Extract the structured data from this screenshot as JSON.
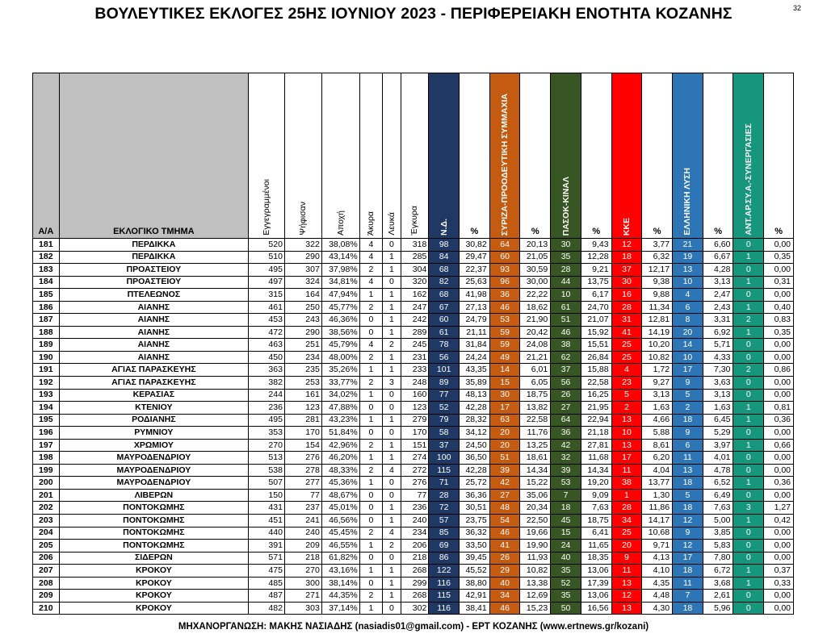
{
  "page": {
    "title": "ΒΟΥΛΕΥΤΙΚΕΣ ΕΚΛΟΓΕΣ 25ΗΣ ΙΟΥΝΙΟΥ 2023 - ΠΕΡΙΦΕΡΕΙΑΚΗ ΕΝΟΤΗΤΑ ΚΟΖΑΝΗΣ",
    "page_number": "32",
    "footer": "ΜΗΧΑΝΟΡΓΑΝΩΣΗ: ΜΑΚΗΣ ΝΑΣΙΑΔΗΣ (nasiadis01@gmail.com) - ΕΡΤ ΚΟΖΑΝΗΣ (www.ertnews.gr/kozani)"
  },
  "headers": {
    "aa": "Α/Α",
    "tmima": "ΕΚΛΟΓΙΚΟ ΤΜΗΜΑ",
    "eggegrammenoi": "Εγγεγραμμένοι",
    "psifisan": "Ψήφισαν",
    "apoxi": "Αποχή",
    "akyra": "Άκυρα",
    "lefka": "Λευκά",
    "egkyra": "Έγκυρα",
    "pct": "%"
  },
  "parties": [
    {
      "key": "nd",
      "name": "Ν.Δ.",
      "color": "#1f3864"
    },
    {
      "key": "sy",
      "name": "ΣΥΡΙΖΑ-ΠΡΟΟΔΕΥΤΙΚΗ ΣΥΜΜΑΧΙΑ",
      "color": "#c55a11"
    },
    {
      "key": "pa",
      "name": "ΠΑΣΟΚ-ΚΙΝΑΛ",
      "color": "#375623"
    },
    {
      "key": "kk",
      "name": "ΚΚΕ",
      "color": "#ff0000"
    },
    {
      "key": "el",
      "name": "ΕΛΛΗΝΙΚΗ ΛΥΣΗ",
      "color": "#2e75b6"
    },
    {
      "key": "an",
      "name": "ΑΝΤ.ΑΡ.ΣΥ.Α.-ΣΥΝΕΡΓΑΣΙΕΣ",
      "color": "#15967d"
    }
  ],
  "rows": [
    [
      "181",
      "ΠΕΡΔΙΚΚΑ",
      "520",
      "322",
      "38,08%",
      "4",
      "0",
      "318",
      "98",
      "30,82",
      "64",
      "20,13",
      "30",
      "9,43",
      "12",
      "3,77",
      "21",
      "6,60",
      "0",
      "0,00"
    ],
    [
      "182",
      "ΠΕΡΔΙΚΚΑ",
      "510",
      "290",
      "43,14%",
      "4",
      "1",
      "285",
      "84",
      "29,47",
      "60",
      "21,05",
      "35",
      "12,28",
      "18",
      "6,32",
      "19",
      "6,67",
      "1",
      "0,35"
    ],
    [
      "183",
      "ΠΡΟΑΣΤΕΙΟΥ",
      "495",
      "307",
      "37,98%",
      "2",
      "1",
      "304",
      "68",
      "22,37",
      "93",
      "30,59",
      "28",
      "9,21",
      "37",
      "12,17",
      "13",
      "4,28",
      "0",
      "0,00"
    ],
    [
      "184",
      "ΠΡΟΑΣΤΕΙΟΥ",
      "497",
      "324",
      "34,81%",
      "4",
      "0",
      "320",
      "82",
      "25,63",
      "96",
      "30,00",
      "44",
      "13,75",
      "30",
      "9,38",
      "10",
      "3,13",
      "1",
      "0,31"
    ],
    [
      "185",
      "ΠΤΕΛΕΩΝΟΣ",
      "315",
      "164",
      "47,94%",
      "1",
      "1",
      "162",
      "68",
      "41,98",
      "36",
      "22,22",
      "10",
      "6,17",
      "16",
      "9,88",
      "4",
      "2,47",
      "0",
      "0,00"
    ],
    [
      "186",
      "ΑΙΑΝΗΣ",
      "461",
      "250",
      "45,77%",
      "2",
      "1",
      "247",
      "67",
      "27,13",
      "46",
      "18,62",
      "61",
      "24,70",
      "28",
      "11,34",
      "6",
      "2,43",
      "1",
      "0,40"
    ],
    [
      "187",
      "ΑΙΑΝΗΣ",
      "453",
      "243",
      "46,36%",
      "0",
      "1",
      "242",
      "60",
      "24,79",
      "53",
      "21,90",
      "51",
      "21,07",
      "31",
      "12,81",
      "8",
      "3,31",
      "2",
      "0,83"
    ],
    [
      "188",
      "ΑΙΑΝΗΣ",
      "472",
      "290",
      "38,56%",
      "0",
      "1",
      "289",
      "61",
      "21,11",
      "59",
      "20,42",
      "46",
      "15,92",
      "41",
      "14,19",
      "20",
      "6,92",
      "1",
      "0,35"
    ],
    [
      "189",
      "ΑΙΑΝΗΣ",
      "463",
      "251",
      "45,79%",
      "4",
      "2",
      "245",
      "78",
      "31,84",
      "59",
      "24,08",
      "38",
      "15,51",
      "25",
      "10,20",
      "14",
      "5,71",
      "0",
      "0,00"
    ],
    [
      "190",
      "ΑΙΑΝΗΣ",
      "450",
      "234",
      "48,00%",
      "2",
      "1",
      "231",
      "56",
      "24,24",
      "49",
      "21,21",
      "62",
      "26,84",
      "25",
      "10,82",
      "10",
      "4,33",
      "0",
      "0,00"
    ],
    [
      "191",
      "ΑΓΙΑΣ ΠΑΡΑΣΚΕΥΗΣ",
      "363",
      "235",
      "35,26%",
      "1",
      "1",
      "233",
      "101",
      "43,35",
      "14",
      "6,01",
      "37",
      "15,88",
      "4",
      "1,72",
      "17",
      "7,30",
      "2",
      "0,86"
    ],
    [
      "192",
      "ΑΓΙΑΣ ΠΑΡΑΣΚΕΥΗΣ",
      "382",
      "253",
      "33,77%",
      "2",
      "3",
      "248",
      "89",
      "35,89",
      "15",
      "6,05",
      "56",
      "22,58",
      "23",
      "9,27",
      "9",
      "3,63",
      "0",
      "0,00"
    ],
    [
      "193",
      "ΚΕΡΑΣΙΑΣ",
      "244",
      "161",
      "34,02%",
      "1",
      "0",
      "160",
      "77",
      "48,13",
      "30",
      "18,75",
      "26",
      "16,25",
      "5",
      "3,13",
      "5",
      "3,13",
      "0",
      "0,00"
    ],
    [
      "194",
      "ΚΤΕΝΙΟΥ",
      "236",
      "123",
      "47,88%",
      "0",
      "0",
      "123",
      "52",
      "42,28",
      "17",
      "13,82",
      "27",
      "21,95",
      "2",
      "1,63",
      "2",
      "1,63",
      "1",
      "0,81"
    ],
    [
      "195",
      "ΡΟΔΙΑΝΗΣ",
      "495",
      "281",
      "43,23%",
      "1",
      "1",
      "279",
      "79",
      "28,32",
      "63",
      "22,58",
      "64",
      "22,94",
      "13",
      "4,66",
      "18",
      "6,45",
      "1",
      "0,36"
    ],
    [
      "196",
      "ΡΥΜΝΙΟΥ",
      "353",
      "170",
      "51,84%",
      "0",
      "0",
      "170",
      "58",
      "34,12",
      "20",
      "11,76",
      "36",
      "21,18",
      "10",
      "5,88",
      "9",
      "5,29",
      "0",
      "0,00"
    ],
    [
      "197",
      "ΧΡΩΜΙΟΥ",
      "270",
      "154",
      "42,96%",
      "2",
      "1",
      "151",
      "37",
      "24,50",
      "20",
      "13,25",
      "42",
      "27,81",
      "13",
      "8,61",
      "6",
      "3,97",
      "1",
      "0,66"
    ],
    [
      "198",
      "ΜΑΥΡΟΔΕΝΔΡΙΟΥ",
      "513",
      "276",
      "46,20%",
      "1",
      "1",
      "274",
      "100",
      "36,50",
      "51",
      "18,61",
      "32",
      "11,68",
      "17",
      "6,20",
      "11",
      "4,01",
      "0",
      "0,00"
    ],
    [
      "199",
      "ΜΑΥΡΟΔΕΝΔΡΙΟΥ",
      "538",
      "278",
      "48,33%",
      "2",
      "4",
      "272",
      "115",
      "42,28",
      "39",
      "14,34",
      "39",
      "14,34",
      "11",
      "4,04",
      "13",
      "4,78",
      "0",
      "0,00"
    ],
    [
      "200",
      "ΜΑΥΡΟΔΕΝΔΡΙΟΥ",
      "507",
      "277",
      "45,36%",
      "1",
      "0",
      "276",
      "71",
      "25,72",
      "42",
      "15,22",
      "53",
      "19,20",
      "38",
      "13,77",
      "18",
      "6,52",
      "1",
      "0,36"
    ],
    [
      "201",
      "ΛΙΒΕΡΩΝ",
      "150",
      "77",
      "48,67%",
      "0",
      "0",
      "77",
      "28",
      "36,36",
      "27",
      "35,06",
      "7",
      "9,09",
      "1",
      "1,30",
      "5",
      "6,49",
      "0",
      "0,00"
    ],
    [
      "202",
      "ΠΟΝΤΟΚΩΜΗΣ",
      "431",
      "237",
      "45,01%",
      "0",
      "1",
      "236",
      "72",
      "30,51",
      "48",
      "20,34",
      "18",
      "7,63",
      "28",
      "11,86",
      "18",
      "7,63",
      "3",
      "1,27"
    ],
    [
      "203",
      "ΠΟΝΤΟΚΩΜΗΣ",
      "451",
      "241",
      "46,56%",
      "0",
      "1",
      "240",
      "57",
      "23,75",
      "54",
      "22,50",
      "45",
      "18,75",
      "34",
      "14,17",
      "12",
      "5,00",
      "1",
      "0,42"
    ],
    [
      "204",
      "ΠΟΝΤΟΚΩΜΗΣ",
      "440",
      "240",
      "45,45%",
      "2",
      "4",
      "234",
      "85",
      "36,32",
      "46",
      "19,66",
      "15",
      "6,41",
      "25",
      "10,68",
      "9",
      "3,85",
      "0",
      "0,00"
    ],
    [
      "205",
      "ΠΟΝΤΟΚΩΜΗΣ",
      "391",
      "209",
      "46,55%",
      "1",
      "2",
      "206",
      "69",
      "33,50",
      "41",
      "19,90",
      "24",
      "11,65",
      "20",
      "9,71",
      "12",
      "5,83",
      "0",
      "0,00"
    ],
    [
      "206",
      "ΣΙΔΕΡΩΝ",
      "571",
      "218",
      "61,82%",
      "0",
      "0",
      "218",
      "86",
      "39,45",
      "26",
      "11,93",
      "40",
      "18,35",
      "9",
      "4,13",
      "17",
      "7,80",
      "0",
      "0,00"
    ],
    [
      "207",
      "ΚΡΟΚΟΥ",
      "475",
      "270",
      "43,16%",
      "1",
      "1",
      "268",
      "122",
      "45,52",
      "29",
      "10,82",
      "35",
      "13,06",
      "11",
      "4,10",
      "18",
      "6,72",
      "1",
      "0,37"
    ],
    [
      "208",
      "ΚΡΟΚΟΥ",
      "485",
      "300",
      "38,14%",
      "0",
      "1",
      "299",
      "116",
      "38,80",
      "40",
      "13,38",
      "52",
      "17,39",
      "13",
      "4,35",
      "11",
      "3,68",
      "1",
      "0,33"
    ],
    [
      "209",
      "ΚΡΟΚΟΥ",
      "487",
      "271",
      "44,35%",
      "2",
      "1",
      "268",
      "115",
      "42,91",
      "34",
      "12,69",
      "35",
      "13,06",
      "12",
      "4,48",
      "7",
      "2,61",
      "0",
      "0,00"
    ],
    [
      "210",
      "ΚΡΟΚΟΥ",
      "482",
      "303",
      "37,14%",
      "1",
      "0",
      "302",
      "116",
      "38,41",
      "46",
      "15,23",
      "50",
      "16,56",
      "13",
      "4,30",
      "18",
      "5,96",
      "0",
      "0,00"
    ]
  ]
}
